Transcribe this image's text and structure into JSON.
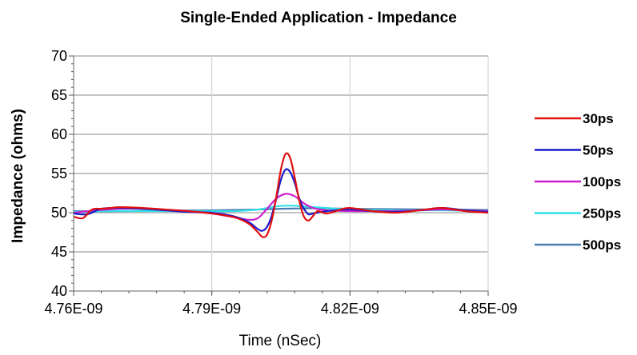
{
  "chart_data": {
    "type": "line",
    "title": "Single-Ended Application - Impedance",
    "xlabel": "Time (nSec)",
    "ylabel": "Impedance (ohms)",
    "xlim": [
      4.76e-09,
      4.85e-09
    ],
    "ylim": [
      40,
      70
    ],
    "x_ticks": [
      "4.76E-09",
      "4.79E-09",
      "4.82E-09",
      "4.85E-09"
    ],
    "y_ticks": [
      "40",
      "45",
      "50",
      "55",
      "60",
      "65",
      "70"
    ],
    "grid": "vertical-major",
    "legend_position": "right",
    "series": [
      {
        "name": "30ps",
        "color": "#e01010",
        "points": [
          [
            4.76e-09,
            49.5
          ],
          [
            4.762e-09,
            49.3
          ],
          [
            4.764e-09,
            50.4
          ],
          [
            4.766e-09,
            50.5
          ],
          [
            4.768e-09,
            50.6
          ],
          [
            4.77e-09,
            50.7
          ],
          [
            4.775e-09,
            50.6
          ],
          [
            4.78e-09,
            50.4
          ],
          [
            4.785e-09,
            50.2
          ],
          [
            4.79e-09,
            49.9
          ],
          [
            4.795e-09,
            49.4
          ],
          [
            4.798e-09,
            48.6
          ],
          [
            4.8e-09,
            47.5
          ],
          [
            4.801e-09,
            46.9
          ],
          [
            4.802e-09,
            47.2
          ],
          [
            4.803e-09,
            49.0
          ],
          [
            4.804e-09,
            52.0
          ],
          [
            4.805e-09,
            55.5
          ],
          [
            4.806e-09,
            57.5
          ],
          [
            4.807e-09,
            57.0
          ],
          [
            4.808e-09,
            54.5
          ],
          [
            4.809e-09,
            51.5
          ],
          [
            4.81e-09,
            49.5
          ],
          [
            4.811e-09,
            49.0
          ],
          [
            4.812e-09,
            49.6
          ],
          [
            4.813e-09,
            50.2
          ],
          [
            4.815e-09,
            49.9
          ],
          [
            4.818e-09,
            50.4
          ],
          [
            4.82e-09,
            50.6
          ],
          [
            4.825e-09,
            50.2
          ],
          [
            4.83e-09,
            50.0
          ],
          [
            4.835e-09,
            50.3
          ],
          [
            4.84e-09,
            50.6
          ],
          [
            4.845e-09,
            50.2
          ],
          [
            4.85e-09,
            50.0
          ]
        ]
      },
      {
        "name": "50ps",
        "color": "#1c1ccc",
        "points": [
          [
            4.76e-09,
            49.9
          ],
          [
            4.763e-09,
            49.8
          ],
          [
            4.766e-09,
            50.5
          ],
          [
            4.77e-09,
            50.6
          ],
          [
            4.775e-09,
            50.5
          ],
          [
            4.78e-09,
            50.3
          ],
          [
            4.785e-09,
            50.1
          ],
          [
            4.79e-09,
            50.0
          ],
          [
            4.795e-09,
            49.5
          ],
          [
            4.798e-09,
            48.8
          ],
          [
            4.8e-09,
            47.9
          ],
          [
            4.801e-09,
            47.7
          ],
          [
            4.802e-09,
            48.2
          ],
          [
            4.803e-09,
            49.6
          ],
          [
            4.804e-09,
            51.8
          ],
          [
            4.805e-09,
            54.2
          ],
          [
            4.806e-09,
            55.5
          ],
          [
            4.807e-09,
            55.2
          ],
          [
            4.808e-09,
            53.8
          ],
          [
            4.809e-09,
            51.8
          ],
          [
            4.81e-09,
            50.5
          ],
          [
            4.811e-09,
            49.8
          ],
          [
            4.812e-09,
            49.9
          ],
          [
            4.815e-09,
            50.2
          ],
          [
            4.82e-09,
            50.4
          ],
          [
            4.825e-09,
            50.2
          ],
          [
            4.83e-09,
            50.1
          ],
          [
            4.835e-09,
            50.3
          ],
          [
            4.84e-09,
            50.6
          ],
          [
            4.845e-09,
            50.3
          ],
          [
            4.85e-09,
            50.1
          ]
        ]
      },
      {
        "name": "100ps",
        "color": "#cc20cc",
        "points": [
          [
            4.76e-09,
            50.0
          ],
          [
            4.765e-09,
            50.3
          ],
          [
            4.77e-09,
            50.5
          ],
          [
            4.775e-09,
            50.5
          ],
          [
            4.78e-09,
            50.3
          ],
          [
            4.785e-09,
            50.1
          ],
          [
            4.79e-09,
            49.9
          ],
          [
            4.795e-09,
            49.4
          ],
          [
            4.798e-09,
            49.1
          ],
          [
            4.8e-09,
            49.3
          ],
          [
            4.802e-09,
            50.5
          ],
          [
            4.804e-09,
            51.8
          ],
          [
            4.806e-09,
            52.4
          ],
          [
            4.808e-09,
            52.1
          ],
          [
            4.81e-09,
            51.2
          ],
          [
            4.812e-09,
            50.6
          ],
          [
            4.815e-09,
            50.3
          ],
          [
            4.82e-09,
            50.2
          ],
          [
            4.825e-09,
            50.2
          ],
          [
            4.83e-09,
            50.2
          ],
          [
            4.835e-09,
            50.3
          ],
          [
            4.84e-09,
            50.4
          ],
          [
            4.845e-09,
            50.3
          ],
          [
            4.85e-09,
            50.2
          ]
        ]
      },
      {
        "name": "250ps",
        "color": "#30e0e8",
        "points": [
          [
            4.76e-09,
            50.1
          ],
          [
            4.77e-09,
            50.2
          ],
          [
            4.78e-09,
            50.2
          ],
          [
            4.79e-09,
            50.2
          ],
          [
            4.795e-09,
            50.2
          ],
          [
            4.8e-09,
            50.4
          ],
          [
            4.804e-09,
            50.8
          ],
          [
            4.807e-09,
            50.9
          ],
          [
            4.81e-09,
            50.8
          ],
          [
            4.815e-09,
            50.6
          ],
          [
            4.82e-09,
            50.4
          ],
          [
            4.83e-09,
            50.3
          ],
          [
            4.84e-09,
            50.3
          ],
          [
            4.85e-09,
            50.2
          ]
        ]
      },
      {
        "name": "500ps",
        "color": "#4a7db0",
        "points": [
          [
            4.76e-09,
            50.2
          ],
          [
            4.77e-09,
            50.2
          ],
          [
            4.78e-09,
            50.25
          ],
          [
            4.79e-09,
            50.3
          ],
          [
            4.8e-09,
            50.4
          ],
          [
            4.805e-09,
            50.5
          ],
          [
            4.81e-09,
            50.55
          ],
          [
            4.815e-09,
            50.55
          ],
          [
            4.82e-09,
            50.5
          ],
          [
            4.83e-09,
            50.45
          ],
          [
            4.84e-09,
            50.4
          ],
          [
            4.85e-09,
            50.35
          ]
        ]
      }
    ]
  }
}
